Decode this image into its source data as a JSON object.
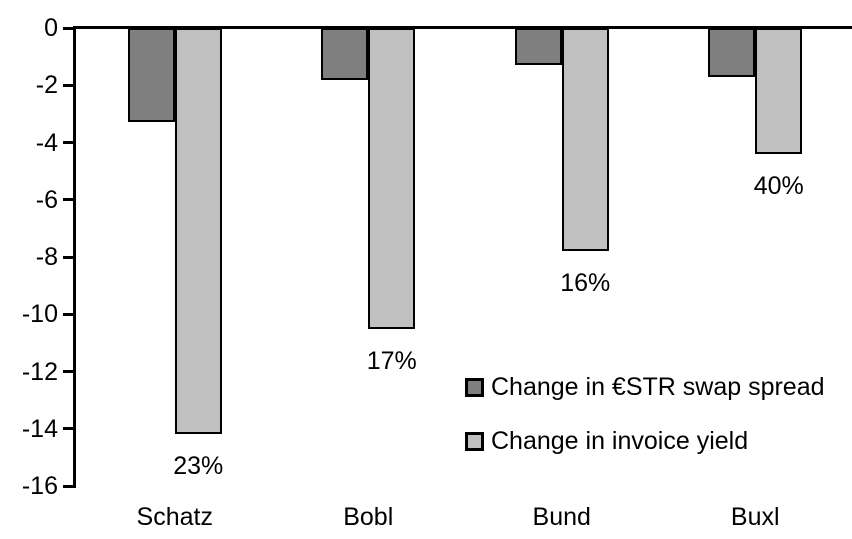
{
  "chart_data": {
    "type": "bar",
    "categories": [
      "Schatz",
      "Bobl",
      "Bund",
      "Buxl"
    ],
    "series": [
      {
        "name": "Change in €STR swap spread",
        "color": "#7f7f7f",
        "values": [
          -3.3,
          -1.8,
          -1.3,
          -1.7
        ]
      },
      {
        "name": "Change in invoice yield",
        "color": "#c0c0c0",
        "values": [
          -14.2,
          -10.5,
          -7.8,
          -4.4
        ],
        "point_labels": [
          "23%",
          "17%",
          "16%",
          "40%"
        ]
      }
    ],
    "ylim": [
      -16,
      0
    ],
    "yticks": [
      0,
      -2,
      -4,
      -6,
      -8,
      -10,
      -12,
      -14,
      -16
    ],
    "grid": false,
    "legend_position": "inside-right",
    "colors": {
      "axis": "#000000",
      "bar_border": "#000000",
      "text": "#000000",
      "background": "#ffffff"
    }
  }
}
